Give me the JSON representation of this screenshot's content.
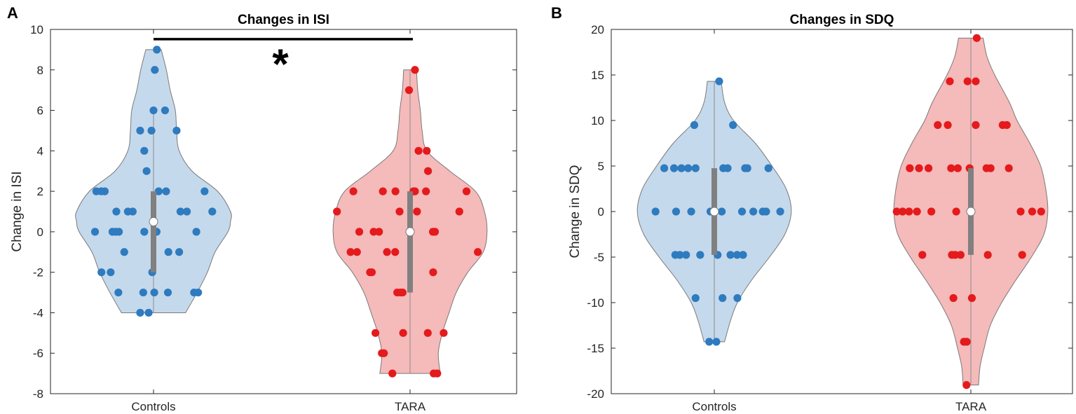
{
  "chart_data": [
    {
      "type": "violin",
      "panel_label": "A",
      "title": "Changes in ISI",
      "xlabel": "",
      "ylabel": "Change in ISI",
      "categories": [
        "Controls",
        "TARA"
      ],
      "ylim": [
        -8,
        10
      ],
      "yticks": [
        "10",
        "8",
        "6",
        "4",
        "2",
        "0",
        "-2",
        "-4",
        "-6",
        "-8"
      ],
      "ytick_values": [
        10,
        8,
        6,
        4,
        2,
        0,
        -2,
        -4,
        -6,
        -8
      ],
      "significance": {
        "from": "Controls",
        "to": "TARA",
        "y": 9.52,
        "label": "*"
      },
      "series": [
        {
          "name": "Controls",
          "fill": "#c5d9ec",
          "dot": "#2e7bbf",
          "median": 0.5,
          "q1": -2,
          "q3": 2,
          "whisker": [
            -4,
            6
          ],
          "violin": [
            [
              9,
              0.03
            ],
            [
              8,
              0.05
            ],
            [
              7,
              0.065
            ],
            [
              6,
              0.085
            ],
            [
              5,
              0.09
            ],
            [
              4,
              0.1
            ],
            [
              3,
              0.15
            ],
            [
              2,
              0.25
            ],
            [
              1,
              0.3
            ],
            [
              0.5,
              0.3
            ],
            [
              0,
              0.29
            ],
            [
              -1,
              0.24
            ],
            [
              -2,
              0.21
            ],
            [
              -3,
              0.17
            ],
            [
              -4,
              0.125
            ]
          ],
          "points": [
            [
              1.013,
              9
            ],
            [
              1.005,
              8
            ],
            [
              1.0,
              6
            ],
            [
              1.045,
              6
            ],
            [
              0.948,
              5
            ],
            [
              0.992,
              5
            ],
            [
              1.09,
              5
            ],
            [
              0.964,
              4
            ],
            [
              0.973,
              3
            ],
            [
              0.777,
              2
            ],
            [
              0.796,
              2
            ],
            [
              0.81,
              2
            ],
            [
              1.02,
              2
            ],
            [
              1.049,
              2
            ],
            [
              1.199,
              2
            ],
            [
              0.855,
              1
            ],
            [
              0.9,
              1
            ],
            [
              0.919,
              1
            ],
            [
              1.105,
              1
            ],
            [
              1.13,
              1
            ],
            [
              1.229,
              1
            ],
            [
              0.772,
              0
            ],
            [
              0.84,
              0
            ],
            [
              0.853,
              0
            ],
            [
              0.865,
              0
            ],
            [
              0.964,
              0
            ],
            [
              1.012,
              0
            ],
            [
              1.167,
              0
            ],
            [
              0.886,
              -1
            ],
            [
              1.058,
              -1
            ],
            [
              1.1,
              -1
            ],
            [
              0.797,
              -2
            ],
            [
              0.833,
              -2
            ],
            [
              0.995,
              -2
            ],
            [
              0.863,
              -3
            ],
            [
              0.96,
              -3
            ],
            [
              1.003,
              -3
            ],
            [
              1.056,
              -3
            ],
            [
              1.158,
              -3
            ],
            [
              1.174,
              -3
            ],
            [
              0.948,
              -4
            ],
            [
              0.981,
              -4
            ]
          ]
        },
        {
          "name": "TARA",
          "fill": "#f5baba",
          "dot": "#e41a1c",
          "median": 0,
          "q1": -3,
          "q3": 2,
          "whisker": [
            -7,
            8
          ],
          "violin": [
            [
              8,
              0.025
            ],
            [
              7,
              0.03
            ],
            [
              6,
              0.04
            ],
            [
              5,
              0.047
            ],
            [
              4,
              0.066
            ],
            [
              3,
              0.155
            ],
            [
              2,
              0.255
            ],
            [
              1,
              0.29
            ],
            [
              0,
              0.3
            ],
            [
              -1,
              0.285
            ],
            [
              -2,
              0.225
            ],
            [
              -3,
              0.18
            ],
            [
              -4,
              0.152
            ],
            [
              -5,
              0.126
            ],
            [
              -6,
              0.11
            ],
            [
              -7,
              0.118
            ]
          ],
          "points": [
            [
              2.019,
              8
            ],
            [
              1.996,
              7
            ],
            [
              2.033,
              4
            ],
            [
              2.065,
              4
            ],
            [
              2.07,
              3
            ],
            [
              1.779,
              2
            ],
            [
              1.894,
              2
            ],
            [
              1.943,
              2
            ],
            [
              2.013,
              2
            ],
            [
              2.019,
              2
            ],
            [
              2.062,
              2
            ],
            [
              2.22,
              2
            ],
            [
              1.715,
              1
            ],
            [
              1.959,
              1
            ],
            [
              2.027,
              1
            ],
            [
              2.192,
              1
            ],
            [
              1.802,
              0
            ],
            [
              1.858,
              0
            ],
            [
              1.879,
              0
            ],
            [
              2.089,
              0
            ],
            [
              2.097,
              0
            ],
            [
              1.768,
              -1
            ],
            [
              1.793,
              -1
            ],
            [
              1.91,
              -1
            ],
            [
              1.942,
              -1
            ],
            [
              2.264,
              -1
            ],
            [
              1.844,
              -2
            ],
            [
              1.851,
              -2
            ],
            [
              2.09,
              -2
            ],
            [
              1.95,
              -3
            ],
            [
              1.963,
              -3
            ],
            [
              1.971,
              -3
            ],
            [
              1.865,
              -5
            ],
            [
              1.973,
              -5
            ],
            [
              2.069,
              -5
            ],
            [
              2.131,
              -5
            ],
            [
              1.89,
              -6
            ],
            [
              1.898,
              -6
            ],
            [
              1.931,
              -7
            ],
            [
              2.092,
              -7
            ],
            [
              2.106,
              -7
            ]
          ]
        }
      ]
    },
    {
      "type": "violin",
      "panel_label": "B",
      "title": "Changes in SDQ",
      "xlabel": "",
      "ylabel": "Change in SDQ",
      "categories": [
        "Controls",
        "TARA"
      ],
      "ylim": [
        -20,
        20
      ],
      "yticks": [
        "20",
        "15",
        "10",
        "5",
        "0",
        "-5",
        "-10",
        "-15",
        "-20"
      ],
      "ytick_values": [
        20,
        15,
        10,
        5,
        0,
        -5,
        -10,
        -15,
        -20
      ],
      "series": [
        {
          "name": "Controls",
          "fill": "#c5d9ec",
          "dot": "#2e7bbf",
          "median": 0,
          "q1": -4.76,
          "q3": 4.76,
          "whisker": [
            -14.3,
            14.3
          ],
          "violin": [
            [
              14.3,
              0.027
            ],
            [
              12,
              0.04
            ],
            [
              10,
              0.075
            ],
            [
              7.5,
              0.16
            ],
            [
              5,
              0.225
            ],
            [
              2.5,
              0.28
            ],
            [
              0,
              0.3
            ],
            [
              -2.5,
              0.275
            ],
            [
              -5,
              0.215
            ],
            [
              -7.5,
              0.146
            ],
            [
              -10,
              0.09
            ],
            [
              -12,
              0.063
            ],
            [
              -14.3,
              0.04
            ]
          ],
          "points": [
            [
              1.019,
              14.3
            ],
            [
              0.922,
              9.5
            ],
            [
              1.073,
              9.5
            ],
            [
              0.805,
              4.76
            ],
            [
              0.843,
              4.76
            ],
            [
              0.872,
              4.76
            ],
            [
              0.898,
              4.76
            ],
            [
              0.927,
              4.76
            ],
            [
              1.035,
              4.76
            ],
            [
              1.052,
              4.76
            ],
            [
              1.12,
              4.76
            ],
            [
              1.129,
              4.76
            ],
            [
              1.211,
              4.76
            ],
            [
              0.771,
              0
            ],
            [
              0.851,
              0
            ],
            [
              0.91,
              0
            ],
            [
              0.985,
              0
            ],
            [
              1.029,
              0
            ],
            [
              1.108,
              0
            ],
            [
              1.152,
              0
            ],
            [
              1.189,
              0
            ],
            [
              1.202,
              0
            ],
            [
              1.257,
              0
            ],
            [
              0.848,
              -4.76
            ],
            [
              0.866,
              -4.76
            ],
            [
              0.89,
              -4.76
            ],
            [
              0.945,
              -4.76
            ],
            [
              1.013,
              -4.76
            ],
            [
              1.063,
              -4.76
            ],
            [
              1.089,
              -4.76
            ],
            [
              1.112,
              -4.76
            ],
            [
              0.927,
              -9.5
            ],
            [
              1.032,
              -9.5
            ],
            [
              1.09,
              -9.5
            ],
            [
              0.98,
              -14.3
            ],
            [
              1.008,
              -14.3
            ]
          ]
        },
        {
          "name": "TARA",
          "fill": "#f5baba",
          "dot": "#e41a1c",
          "median": 0,
          "q1": -4.76,
          "q3": 4.76,
          "whisker": [
            -19.05,
            19.05
          ],
          "violin": [
            [
              19.05,
              0.048
            ],
            [
              17,
              0.063
            ],
            [
              15,
              0.093
            ],
            [
              12,
              0.15
            ],
            [
              10,
              0.18
            ],
            [
              7.5,
              0.23
            ],
            [
              5,
              0.272
            ],
            [
              2.5,
              0.292
            ],
            [
              0,
              0.3
            ],
            [
              -2.5,
              0.285
            ],
            [
              -5,
              0.236
            ],
            [
              -7.5,
              0.176
            ],
            [
              -10,
              0.12
            ],
            [
              -12.5,
              0.076
            ],
            [
              -15,
              0.052
            ],
            [
              -17,
              0.036
            ],
            [
              -19.05,
              0.03
            ]
          ],
          "points": [
            [
              2.023,
              19.05
            ],
            [
              1.983,
              -19.05
            ],
            [
              1.918,
              14.3
            ],
            [
              1.987,
              14.3
            ],
            [
              2.019,
              14.3
            ],
            [
              1.871,
              9.5
            ],
            [
              1.91,
              9.5
            ],
            [
              2.019,
              9.5
            ],
            [
              2.124,
              9.5
            ],
            [
              2.14,
              9.5
            ],
            [
              1.762,
              4.76
            ],
            [
              1.798,
              4.76
            ],
            [
              1.835,
              4.76
            ],
            [
              1.923,
              4.76
            ],
            [
              1.949,
              4.76
            ],
            [
              1.995,
              4.76
            ],
            [
              2.061,
              4.76
            ],
            [
              2.077,
              4.76
            ],
            [
              2.148,
              4.76
            ],
            [
              1.711,
              0
            ],
            [
              1.734,
              0
            ],
            [
              1.759,
              0
            ],
            [
              1.79,
              0
            ],
            [
              1.846,
              0
            ],
            [
              1.943,
              0
            ],
            [
              2.194,
              0
            ],
            [
              2.239,
              0
            ],
            [
              2.274,
              0
            ],
            [
              1.811,
              -4.76
            ],
            [
              1.926,
              -4.76
            ],
            [
              1.939,
              -4.76
            ],
            [
              1.96,
              -4.76
            ],
            [
              2.066,
              -4.76
            ],
            [
              2.2,
              -4.76
            ],
            [
              1.932,
              -9.5
            ],
            [
              2.004,
              -9.5
            ],
            [
              1.973,
              -14.3
            ],
            [
              1.984,
              -14.3
            ]
          ]
        }
      ]
    }
  ]
}
